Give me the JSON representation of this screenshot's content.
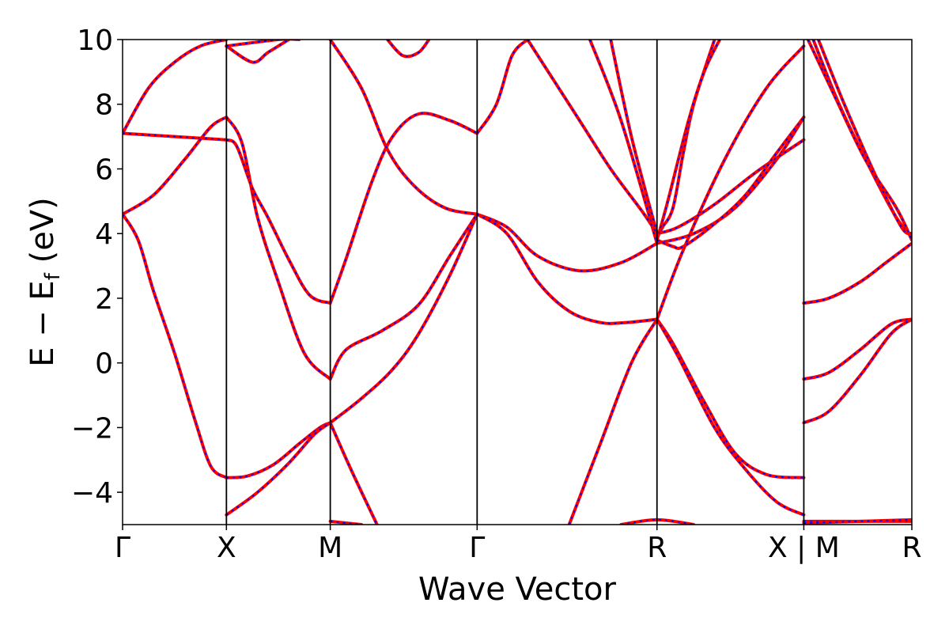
{
  "chart_data": {
    "type": "line",
    "title": "",
    "xlabel": "Wave Vector",
    "ylabel": "E − E",
    "ylabel_subscript": "f",
    "ylabel_unit": "(eV)",
    "ylim": [
      -5,
      10
    ],
    "yticks": [
      10,
      8,
      6,
      4,
      2,
      0,
      -2,
      -4
    ],
    "ytick_labels": [
      "10",
      "8",
      "6",
      "4",
      "2",
      "0",
      "−2",
      "−4"
    ],
    "grid": false,
    "legend": "none",
    "colors": {
      "solid_line": "#ff0000",
      "dashed_line": "#0000ff",
      "kpoint_line": "#000000"
    },
    "kpath": {
      "x_range": [
        0,
        7.6
      ],
      "high_symmetry_points": [
        {
          "label": "Γ",
          "x": 0.0
        },
        {
          "label": "X",
          "x": 1.0
        },
        {
          "label": "M",
          "x": 2.0
        },
        {
          "label": "Γ",
          "x": 3.414
        },
        {
          "label": "R",
          "x": 5.146
        },
        {
          "label": "X | M",
          "x": 6.56
        },
        {
          "label": "R",
          "x": 7.6
        }
      ]
    },
    "series": [
      {
        "x": [
          0,
          0.25,
          0.5,
          0.75,
          1.0
        ],
        "y": [
          7.1,
          8.5,
          9.3,
          9.8,
          10.0
        ]
      },
      {
        "x": [
          0,
          1.0
        ],
        "y": [
          7.1,
          6.9
        ]
      },
      {
        "x": [
          0,
          0.3,
          0.6,
          0.85,
          1.0
        ],
        "y": [
          4.6,
          5.2,
          6.3,
          7.3,
          7.6
        ]
      },
      {
        "x": [
          0,
          0.15,
          0.3,
          0.5,
          0.7,
          0.85,
          1.0
        ],
        "y": [
          4.6,
          3.8,
          2.2,
          0.3,
          -1.8,
          -3.2,
          -3.55
        ]
      },
      {
        "x": [
          1.0,
          1.2,
          1.45,
          1.7,
          1.9,
          2.0
        ],
        "y": [
          -3.55,
          -3.5,
          -3.15,
          -2.5,
          -2.0,
          -1.85
        ]
      },
      {
        "x": [
          1.0,
          1.3,
          1.6,
          1.85,
          2.0
        ],
        "y": [
          -4.7,
          -4.0,
          -3.1,
          -2.2,
          -1.85
        ]
      },
      {
        "x": [
          1.0,
          1.15,
          1.3,
          1.5,
          1.75,
          2.0
        ],
        "y": [
          7.6,
          6.8,
          4.5,
          2.5,
          0.3,
          -0.5
        ]
      },
      {
        "x": [
          1.0,
          1.1,
          1.25,
          1.4,
          1.6,
          1.8,
          2.0
        ],
        "y": [
          6.9,
          6.7,
          5.4,
          4.5,
          3.2,
          2.1,
          1.85
        ]
      },
      {
        "x": [
          1.0,
          1.25,
          1.4,
          1.6
        ],
        "y": [
          9.8,
          9.3,
          9.6,
          10.0
        ]
      },
      {
        "x": [
          1.0,
          1.5,
          1.7
        ],
        "y": [
          9.8,
          10.0,
          10.0
        ]
      },
      {
        "x": [
          2.0,
          2.3,
          2.6,
          2.85,
          3.15,
          3.414
        ],
        "y": [
          -1.85,
          -1.1,
          -0.2,
          0.9,
          2.7,
          4.6
        ]
      },
      {
        "x": [
          2.0,
          2.15,
          2.5,
          2.85,
          3.15,
          3.414
        ],
        "y": [
          -0.5,
          0.4,
          1.0,
          1.8,
          3.3,
          4.6
        ]
      },
      {
        "x": [
          2.0,
          2.15,
          2.4,
          2.6,
          2.85,
          3.15,
          3.414
        ],
        "y": [
          1.85,
          3.2,
          5.6,
          7.0,
          7.7,
          7.5,
          7.1
        ]
      },
      {
        "x": [
          2.0,
          2.3,
          2.55,
          2.8,
          3.1,
          3.414
        ],
        "y": [
          10.0,
          8.5,
          6.6,
          5.5,
          4.8,
          4.6
        ]
      },
      {
        "x": [
          2.0,
          2.2,
          2.45
        ],
        "y": [
          -1.85,
          -3.3,
          -5.0
        ]
      },
      {
        "x": [
          2.55,
          2.7,
          2.85,
          2.95
        ],
        "y": [
          10.0,
          9.5,
          9.6,
          10.0
        ]
      },
      {
        "x": [
          3.414,
          3.6,
          3.75,
          3.9
        ],
        "y": [
          7.1,
          8.0,
          9.5,
          10.0
        ]
      },
      {
        "x": [
          3.414,
          3.7,
          4.0,
          4.4,
          4.8,
          5.146
        ],
        "y": [
          4.6,
          4.2,
          3.3,
          2.85,
          3.1,
          3.7
        ]
      },
      {
        "x": [
          3.414,
          3.7,
          4.0,
          4.3,
          4.6,
          4.85,
          5.146
        ],
        "y": [
          4.6,
          4.0,
          2.5,
          1.6,
          1.25,
          1.25,
          1.35
        ]
      },
      {
        "x": [
          4.3,
          4.6,
          4.9,
          5.146
        ],
        "y": [
          -5.0,
          -2.5,
          0.0,
          1.35
        ]
      },
      {
        "x": [
          5.146,
          5.3,
          5.6,
          5.9,
          6.2,
          6.56
        ],
        "y": [
          1.35,
          0.6,
          -1.2,
          -2.8,
          -3.45,
          -3.55
        ]
      },
      {
        "x": [
          5.146,
          5.35,
          5.7,
          6.0,
          6.3,
          6.56
        ],
        "y": [
          1.35,
          0.2,
          -2.0,
          -3.3,
          -4.3,
          -4.7
        ]
      },
      {
        "x": [
          5.146,
          5.4,
          5.8,
          6.2,
          6.56
        ],
        "y": [
          1.35,
          3.5,
          6.3,
          8.5,
          9.8
        ]
      },
      {
        "x": [
          5.146,
          5.5,
          5.9,
          6.3,
          6.56
        ],
        "y": [
          3.7,
          4.0,
          4.8,
          6.3,
          7.6
        ]
      },
      {
        "x": [
          5.146,
          5.35,
          5.7,
          6.1,
          6.56
        ],
        "y": [
          4.0,
          4.2,
          4.9,
          5.9,
          6.9
        ]
      },
      {
        "x": [
          5.146,
          5.2,
          5.3,
          5.4,
          5.5,
          5.7
        ],
        "y": [
          3.9,
          4.2,
          4.8,
          6.5,
          8.0,
          10.0
        ]
      },
      {
        "x": [
          5.146,
          5.25,
          5.45,
          5.6,
          5.75
        ],
        "y": [
          3.8,
          5.0,
          7.5,
          9.0,
          10.0
        ]
      },
      {
        "x": [
          4.7,
          4.9,
          5.146
        ],
        "y": [
          10.0,
          7.0,
          4.0
        ]
      },
      {
        "x": [
          4.5,
          4.8,
          5.146
        ],
        "y": [
          10.0,
          7.5,
          3.7
        ]
      },
      {
        "x": [
          3.9,
          4.1,
          4.4,
          4.7,
          5.0,
          5.146
        ],
        "y": [
          10.0,
          9.0,
          7.5,
          6.0,
          4.7,
          4.0
        ]
      },
      {
        "x": [
          5.146,
          5.3,
          5.4,
          5.7,
          6.0,
          6.3,
          6.56
        ],
        "y": [
          3.8,
          3.6,
          3.6,
          4.3,
          5.2,
          6.5,
          7.6
        ]
      },
      {
        "x": [
          6.56,
          6.8,
          7.1,
          7.35,
          7.6
        ],
        "y": [
          1.85,
          2.0,
          2.5,
          3.1,
          3.7
        ]
      },
      {
        "x": [
          6.56,
          6.8,
          7.1,
          7.4,
          7.6
        ],
        "y": [
          -0.5,
          -0.3,
          0.4,
          1.2,
          1.35
        ]
      },
      {
        "x": [
          6.56,
          6.8,
          7.1,
          7.4,
          7.6
        ],
        "y": [
          -1.85,
          -1.5,
          -0.4,
          0.9,
          1.35
        ]
      },
      {
        "x": [
          6.56,
          7.6
        ],
        "y": [
          -4.9,
          -4.9
        ]
      },
      {
        "x": [
          6.56,
          7.6
        ],
        "y": [
          -4.95,
          -4.85
        ]
      },
      {
        "x": [
          6.65,
          6.9,
          7.2,
          7.45,
          7.6
        ],
        "y": [
          10.0,
          8.0,
          6.0,
          4.5,
          3.9
        ]
      },
      {
        "x": [
          6.7,
          6.95,
          7.25,
          7.5,
          7.6
        ],
        "y": [
          10.0,
          8.0,
          5.8,
          4.2,
          4.0
        ]
      },
      {
        "x": [
          6.6,
          6.85,
          7.15,
          7.45,
          7.6
        ],
        "y": [
          10.0,
          8.3,
          6.3,
          4.8,
          3.8
        ]
      },
      {
        "x": [
          2.0,
          2.3
        ],
        "y": [
          -4.9,
          -5.0
        ]
      },
      {
        "x": [
          4.8,
          5.146,
          5.5
        ],
        "y": [
          -5.0,
          -4.85,
          -5.0
        ]
      }
    ]
  }
}
